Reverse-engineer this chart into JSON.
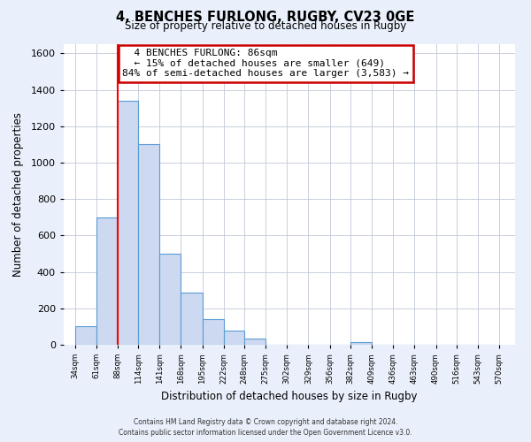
{
  "title": "4, BENCHES FURLONG, RUGBY, CV23 0GE",
  "subtitle": "Size of property relative to detached houses in Rugby",
  "xlabel": "Distribution of detached houses by size in Rugby",
  "ylabel": "Number of detached properties",
  "footer_line1": "Contains HM Land Registry data © Crown copyright and database right 2024.",
  "footer_line2": "Contains public sector information licensed under the Open Government Licence v3.0.",
  "bar_edges": [
    34,
    61,
    88,
    114,
    141,
    168,
    195,
    222,
    248,
    275,
    302,
    329,
    356,
    382,
    409,
    436,
    463,
    490,
    516,
    543,
    570
  ],
  "bar_heights": [
    100,
    700,
    1340,
    1100,
    500,
    285,
    140,
    80,
    35,
    0,
    0,
    0,
    0,
    15,
    0,
    0,
    0,
    0,
    0,
    0
  ],
  "property_size": 86,
  "bar_color": "#ccd9f0",
  "bar_edge_color": "#5b9bd5",
  "red_line_x": 88,
  "annotation_text_line1": "4 BENCHES FURLONG: 86sqm",
  "annotation_text_line2": "← 15% of detached houses are smaller (649)",
  "annotation_text_line3": "84% of semi-detached houses are larger (3,583) →",
  "annotation_box_color": "#ffffff",
  "annotation_box_edge": "#cc0000",
  "ylim": [
    0,
    1650
  ],
  "xlim": [
    20,
    590
  ],
  "bg_color": "#eaf0fb",
  "plot_bg_color": "#ffffff",
  "tick_labels": [
    "34sqm",
    "61sqm",
    "88sqm",
    "114sqm",
    "141sqm",
    "168sqm",
    "195sqm",
    "222sqm",
    "248sqm",
    "275sqm",
    "302sqm",
    "329sqm",
    "356sqm",
    "382sqm",
    "409sqm",
    "436sqm",
    "463sqm",
    "490sqm",
    "516sqm",
    "543sqm",
    "570sqm"
  ],
  "yticks": [
    0,
    200,
    400,
    600,
    800,
    1000,
    1200,
    1400,
    1600
  ]
}
